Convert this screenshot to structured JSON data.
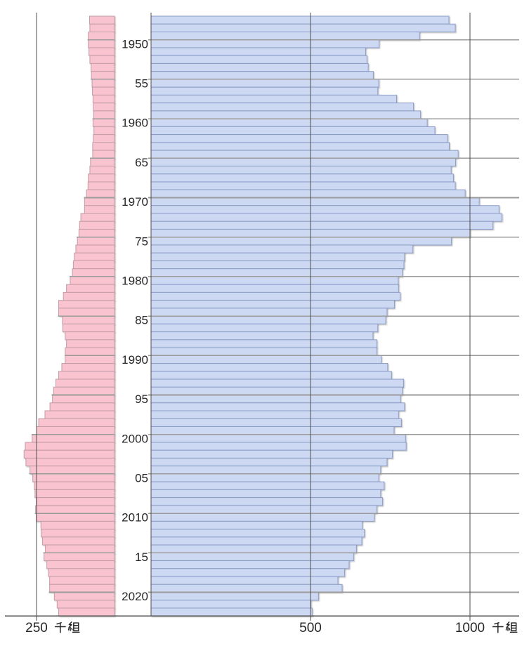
{
  "chart_data": {
    "type": "bar",
    "variant": "back-to-back horizontal bars (pyramid style), one row per year",
    "title": "",
    "unit": "千組",
    "years": [
      1947,
      1948,
      1949,
      1950,
      1951,
      1952,
      1953,
      1954,
      1955,
      1956,
      1957,
      1958,
      1959,
      1960,
      1961,
      1962,
      1963,
      1964,
      1965,
      1966,
      1967,
      1968,
      1969,
      1970,
      1971,
      1972,
      1973,
      1974,
      1975,
      1976,
      1977,
      1978,
      1979,
      1980,
      1981,
      1982,
      1983,
      1984,
      1985,
      1986,
      1987,
      1988,
      1989,
      1990,
      1991,
      1992,
      1993,
      1994,
      1995,
      1996,
      1997,
      1998,
      1999,
      2000,
      2001,
      2002,
      2003,
      2004,
      2005,
      2006,
      2007,
      2008,
      2009,
      2010,
      2011,
      2012,
      2013,
      2014,
      2015,
      2016,
      2017,
      2018,
      2019,
      2020,
      2021,
      2022
    ],
    "series": [
      {
        "name": "left (pink bars)",
        "side": "left",
        "values": [
          80,
          79,
          84,
          84,
          82,
          79,
          75,
          74,
          72,
          71,
          69,
          68,
          67,
          69,
          66,
          68,
          70,
          70,
          77,
          79,
          84,
          85,
          90,
          96,
          96,
          108,
          112,
          114,
          119,
          124,
          129,
          132,
          135,
          142,
          154,
          164,
          179,
          179,
          167,
          166,
          158,
          154,
          158,
          158,
          169,
          179,
          188,
          195,
          199,
          207,
          223,
          243,
          250,
          264,
          286,
          290,
          284,
          271,
          262,
          257,
          255,
          251,
          253,
          251,
          236,
          235,
          231,
          222,
          226,
          217,
          212,
          208,
          208,
          193,
          184,
          179
        ]
      },
      {
        "name": "right (blue bars)",
        "side": "right",
        "values": [
          934,
          954,
          842,
          715,
          673,
          677,
          681,
          697,
          714,
          711,
          770,
          823,
          845,
          866,
          890,
          930,
          935,
          963,
          955,
          941,
          948,
          954,
          985,
          1029,
          1091,
          1100,
          1072,
          1000,
          942,
          821,
          795,
          793,
          788,
          775,
          776,
          781,
          763,
          740,
          736,
          711,
          696,
          708,
          708,
          722,
          742,
          754,
          792,
          788,
          782,
          795,
          776,
          785,
          762,
          798,
          800,
          757,
          740,
          720,
          714,
          731,
          720,
          726,
          708,
          700,
          662,
          669,
          661,
          644,
          635,
          621,
          607,
          586,
          599,
          525,
          501,
          505
        ]
      }
    ],
    "x_axis": {
      "left_ticks": [
        {
          "value": 250,
          "label": "250 千組"
        }
      ],
      "right_ticks": [
        {
          "value": 500,
          "label": "500"
        },
        {
          "value": 1000,
          "label": "1000 千組"
        }
      ],
      "left_range": [
        0,
        320
      ],
      "right_range": [
        0,
        1155
      ]
    },
    "y_axis": {
      "ticks": [
        {
          "year": 1950,
          "label": "1950"
        },
        {
          "year": 1955,
          "label": "55"
        },
        {
          "year": 1960,
          "label": "1960"
        },
        {
          "year": 1965,
          "label": "65"
        },
        {
          "year": 1970,
          "label": "1970"
        },
        {
          "year": 1975,
          "label": "75"
        },
        {
          "year": 1980,
          "label": "1980"
        },
        {
          "year": 1985,
          "label": "85"
        },
        {
          "year": 1990,
          "label": "1990"
        },
        {
          "year": 1995,
          "label": "95"
        },
        {
          "year": 2000,
          "label": "2000"
        },
        {
          "year": 2005,
          "label": "05"
        },
        {
          "year": 2010,
          "label": "2010"
        },
        {
          "year": 2015,
          "label": "15"
        },
        {
          "year": 2020,
          "label": "2020"
        }
      ]
    },
    "grid": true,
    "legend": false
  },
  "colors": {
    "left_bar_fill": "#f9c3cf",
    "left_bar_border": "#c39da8",
    "right_bar_fill": "#cdd9f3",
    "right_bar_border": "#8b9cc5",
    "axis_line": "#4d4d4d",
    "five_year_gridline": "#9b9b9b",
    "label_text": "#262626",
    "background": "#ffffff"
  }
}
